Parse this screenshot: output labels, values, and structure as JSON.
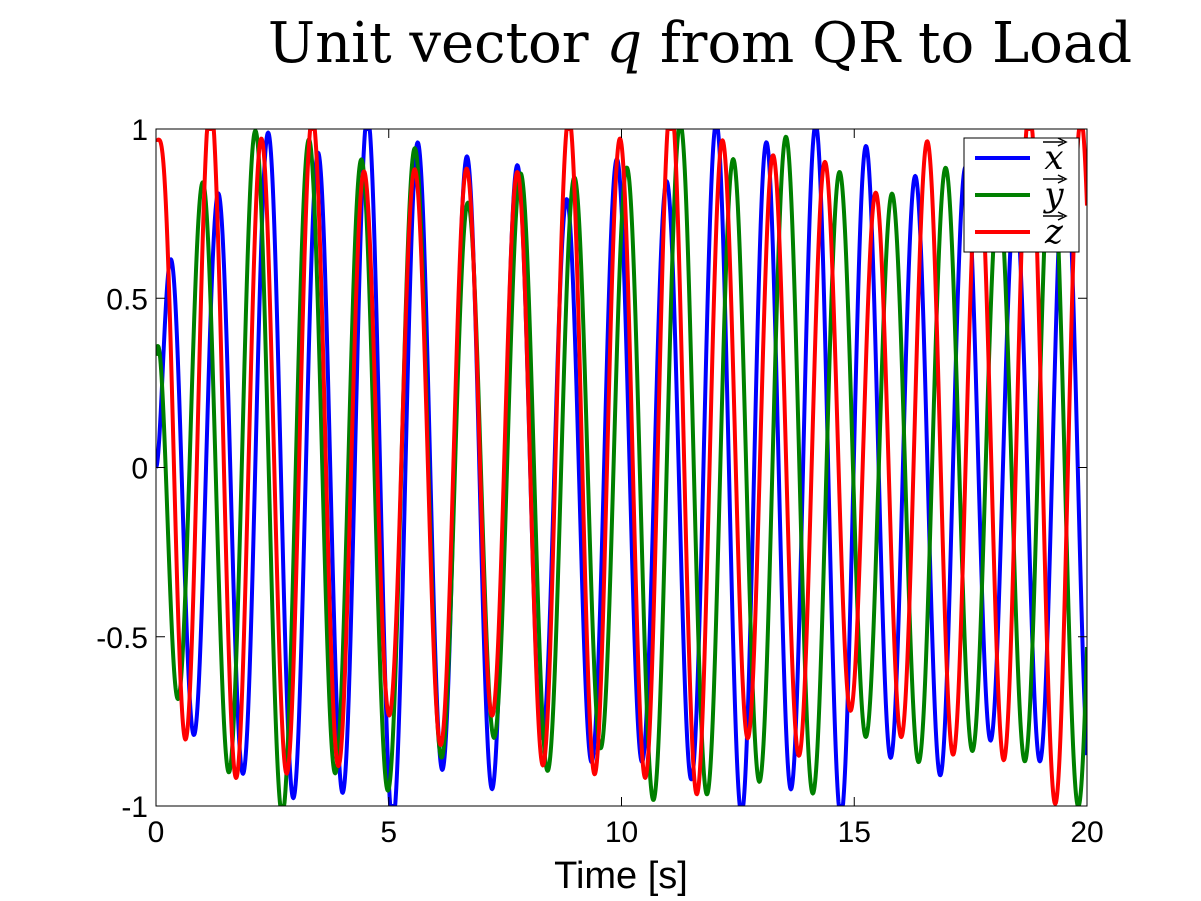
{
  "chart_data": {
    "type": "line",
    "title_prefix": "Unit vector ",
    "title_var": "q",
    "title_suffix": " from QR to Load",
    "xlabel": "Time [s]",
    "ylabel": "",
    "xlim": [
      0,
      20
    ],
    "ylim": [
      -1,
      1
    ],
    "x_ticks": [
      0,
      5,
      10,
      15,
      20
    ],
    "x_tick_labels": [
      "0",
      "5",
      "10",
      "15",
      "20"
    ],
    "y_ticks": [
      -1,
      -0.5,
      0,
      0.5,
      1
    ],
    "y_tick_labels": [
      "-1",
      "-0.5",
      "0",
      "0.5",
      "1"
    ],
    "grid": false,
    "legend_position": "top-right",
    "series": [
      {
        "name": "x",
        "color": "#0000ff",
        "start": 0.0,
        "period": 1.07,
        "phase": 0.0,
        "amp": 0.92,
        "offset": 0.0,
        "mod": 0.09
      },
      {
        "name": "y",
        "color": "#008000",
        "start": 0.33,
        "period": 1.14,
        "phase": 2.35,
        "amp": 0.9,
        "offset": 0.0,
        "mod": 0.08
      },
      {
        "name": "z",
        "color": "#ff0000",
        "start": 0.97,
        "period": 1.1,
        "phase": 1.2,
        "amp": 0.9,
        "offset": 0.05,
        "mod": 0.1
      }
    ]
  }
}
